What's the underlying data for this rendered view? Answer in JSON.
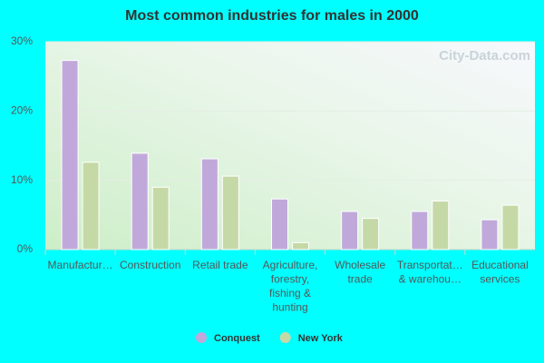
{
  "chart_data": {
    "type": "bar",
    "title": "Most common industries for males in 2000",
    "watermark": "City-Data.com",
    "categories": [
      "Manufactur…",
      "Construction",
      "Retail trade",
      "Agriculture, forestry, fishing & hunting",
      "Wholesale trade",
      "Transportat… & warehou…",
      "Educational services"
    ],
    "series": [
      {
        "name": "Conquest",
        "color": "#c0a9da",
        "values": [
          27.3,
          13.9,
          13.1,
          7.3,
          5.5,
          5.5,
          4.3
        ]
      },
      {
        "name": "New York",
        "color": "#c5d9a6",
        "values": [
          12.6,
          9.0,
          10.6,
          1.0,
          4.5,
          7.0,
          6.4
        ]
      }
    ],
    "ylim": [
      0,
      30
    ],
    "yticks": [
      {
        "value": 0,
        "label": "0%"
      },
      {
        "value": 10,
        "label": "10%"
      },
      {
        "value": 20,
        "label": "20%"
      },
      {
        "value": 30,
        "label": "30%"
      }
    ],
    "grid": true,
    "legend": "bottom"
  }
}
